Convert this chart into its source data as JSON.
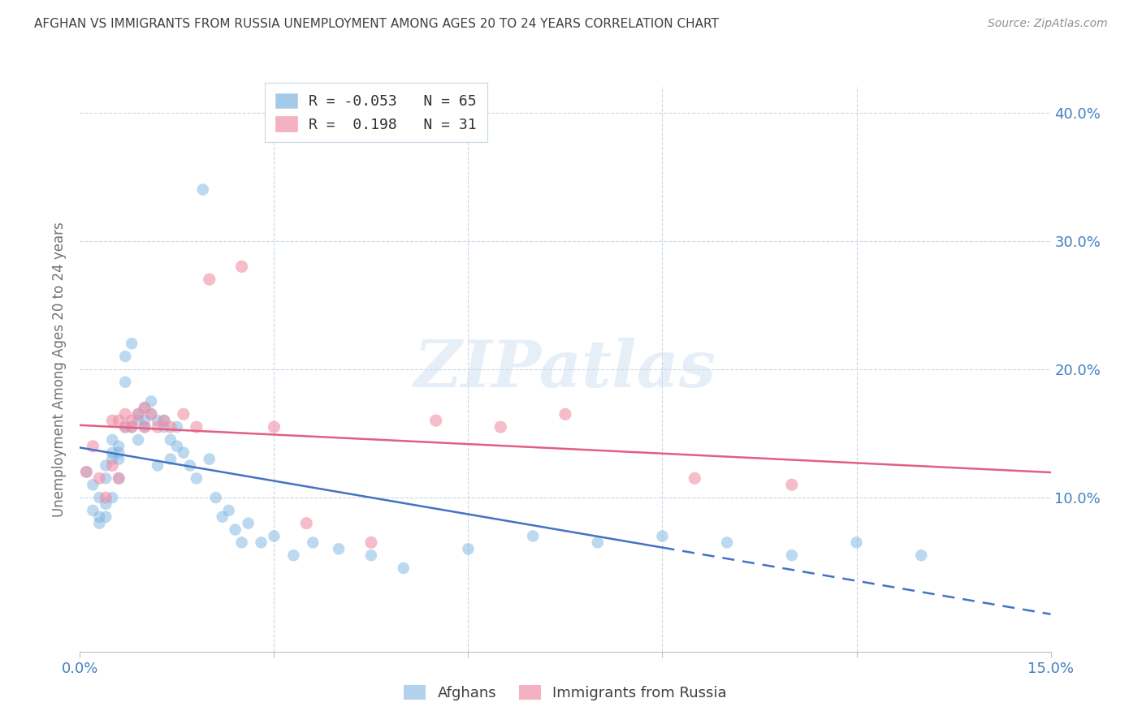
{
  "title": "AFGHAN VS IMMIGRANTS FROM RUSSIA UNEMPLOYMENT AMONG AGES 20 TO 24 YEARS CORRELATION CHART",
  "source": "Source: ZipAtlas.com",
  "ylabel": "Unemployment Among Ages 20 to 24 years",
  "xlim": [
    0.0,
    0.15
  ],
  "ylim": [
    -0.02,
    0.42
  ],
  "afghan_color": "#7db4e0",
  "russia_color": "#f090a8",
  "afghan_line_color": "#4472c4",
  "russia_line_color": "#e06080",
  "grid_color": "#c8d8e8",
  "title_color": "#404040",
  "axis_label_color": "#707070",
  "tick_color": "#4080c0",
  "background_color": "#ffffff",
  "legend_label_afghan": "R = -0.053   N = 65",
  "legend_label_russia": "R =  0.198   N = 31",
  "bottom_legend_afghan": "Afghans",
  "bottom_legend_russia": "Immigrants from Russia",
  "watermark": "ZIPatlas",
  "afghan_x": [
    0.001,
    0.002,
    0.002,
    0.003,
    0.003,
    0.003,
    0.004,
    0.004,
    0.004,
    0.004,
    0.005,
    0.005,
    0.005,
    0.005,
    0.006,
    0.006,
    0.006,
    0.006,
    0.007,
    0.007,
    0.007,
    0.008,
    0.008,
    0.009,
    0.009,
    0.009,
    0.01,
    0.01,
    0.01,
    0.011,
    0.011,
    0.012,
    0.012,
    0.013,
    0.013,
    0.014,
    0.014,
    0.015,
    0.015,
    0.016,
    0.017,
    0.018,
    0.019,
    0.02,
    0.021,
    0.022,
    0.023,
    0.024,
    0.025,
    0.026,
    0.028,
    0.03,
    0.033,
    0.036,
    0.04,
    0.045,
    0.05,
    0.06,
    0.07,
    0.08,
    0.09,
    0.1,
    0.11,
    0.12,
    0.13
  ],
  "afghan_y": [
    0.12,
    0.09,
    0.11,
    0.085,
    0.1,
    0.08,
    0.095,
    0.115,
    0.085,
    0.125,
    0.13,
    0.1,
    0.145,
    0.135,
    0.115,
    0.14,
    0.13,
    0.135,
    0.155,
    0.19,
    0.21,
    0.22,
    0.155,
    0.145,
    0.165,
    0.16,
    0.155,
    0.16,
    0.17,
    0.165,
    0.175,
    0.16,
    0.125,
    0.16,
    0.155,
    0.145,
    0.13,
    0.155,
    0.14,
    0.135,
    0.125,
    0.115,
    0.34,
    0.13,
    0.1,
    0.085,
    0.09,
    0.075,
    0.065,
    0.08,
    0.065,
    0.07,
    0.055,
    0.065,
    0.06,
    0.055,
    0.045,
    0.06,
    0.07,
    0.065,
    0.07,
    0.065,
    0.055,
    0.065,
    0.055
  ],
  "russia_x": [
    0.001,
    0.002,
    0.003,
    0.004,
    0.005,
    0.005,
    0.006,
    0.006,
    0.007,
    0.007,
    0.008,
    0.008,
    0.009,
    0.01,
    0.01,
    0.011,
    0.012,
    0.013,
    0.014,
    0.016,
    0.018,
    0.02,
    0.025,
    0.03,
    0.035,
    0.045,
    0.055,
    0.065,
    0.075,
    0.095,
    0.11
  ],
  "russia_y": [
    0.12,
    0.14,
    0.115,
    0.1,
    0.125,
    0.16,
    0.115,
    0.16,
    0.155,
    0.165,
    0.155,
    0.16,
    0.165,
    0.17,
    0.155,
    0.165,
    0.155,
    0.16,
    0.155,
    0.165,
    0.155,
    0.27,
    0.28,
    0.155,
    0.08,
    0.065,
    0.16,
    0.155,
    0.165,
    0.115,
    0.11
  ]
}
